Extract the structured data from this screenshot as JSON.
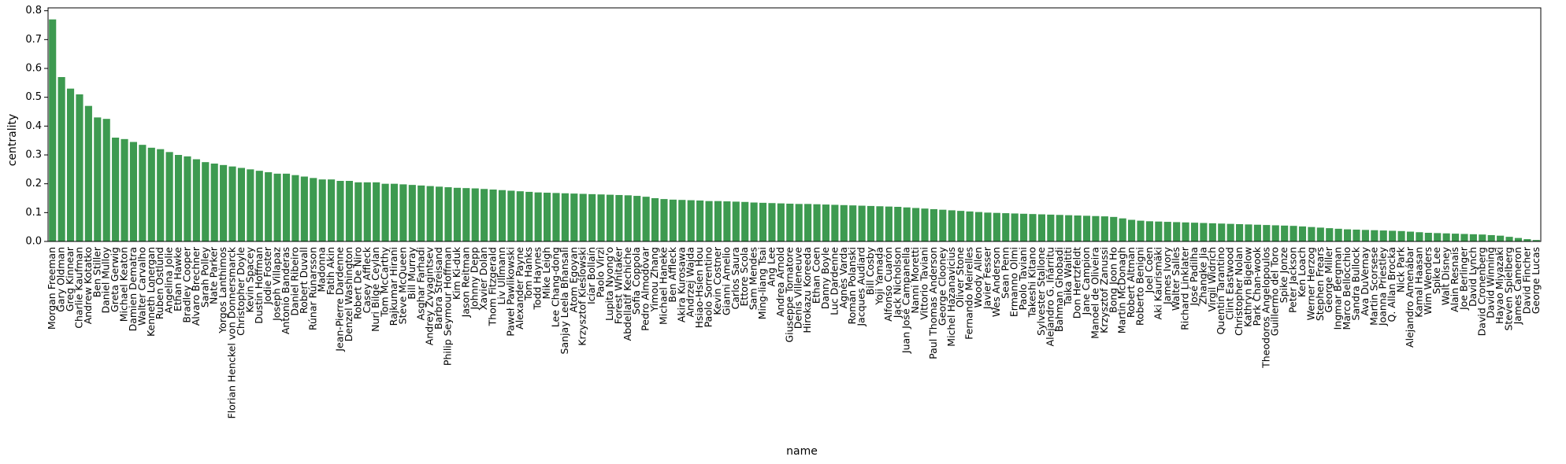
{
  "chart_data": {
    "type": "bar",
    "x_label": "name",
    "y_label": "centrality",
    "color": "#3d9a50",
    "categories": [
      "Morgan Freeman",
      "Gary Oldman",
      "Greg Kinnear",
      "Charlie Kaufman",
      "Andrew Kotatko",
      "Ben Stiller",
      "Daniel Mulloy",
      "Greta Gerwig",
      "Michael Keaton",
      "Damien Dematra",
      "Walter Carvalho",
      "Kenneth Lonergan",
      "Ruben Östlund",
      "Angelina Jolie",
      "Ethan Hawke",
      "Bradley Cooper",
      "Alvaro Brechner",
      "Sarah Polley",
      "Nate Parker",
      "Yorgos Lanthimos",
      "Florian Henckel von Donnersmarck",
      "Christopher Doyle",
      "Kevin Spacey",
      "Dustin Hoffman",
      "Jodie Foster",
      "Joseph Villapaz",
      "Antonio Banderas",
      "Daniel Ribeiro",
      "Robert Duvall",
      "Rúnar Rúnarsson",
      "Madonna",
      "Fatih Akin",
      "Jean-Pierre Dardenne",
      "Denzel Washington",
      "Robert De Niro",
      "Casey Affleck",
      "Nuri Bilge Ceylan",
      "Tom McCarthy",
      "Rajkumar Hirani",
      "Steve McQueen",
      "Bill Murray",
      "Asghar Farhadi",
      "Andrey Zvyagintsev",
      "Barbra Streisand",
      "Philip Seymour Hoffman",
      "Kim Ki-duk",
      "Jason Reitman",
      "Johnny Depp",
      "Xavier Dolan",
      "Thom Fitzgerald",
      "Liv Ullmann",
      "Paweł Pawlikowski",
      "Alexander Payne",
      "Tom Hanks",
      "Todd Haynes",
      "Mike Leigh",
      "Lee Chang-dong",
      "Sanjay Leela Bhansali",
      "Atom Egoyan",
      "Krzysztof Kieślowski",
      "Icíar Bollaín",
      "Paolo Virzì",
      "Lupita Nyong'o",
      "Forest Whitaker",
      "Abdellatif Kechiche",
      "Sofia Coppola",
      "Pedro Almodóvar",
      "Yimou Zhang",
      "Michael Haneke",
      "Ben Affleck",
      "Akira Kurosawa",
      "Andrzej Wajda",
      "Hsiao-Hsien Hou",
      "Paolo Sorrentino",
      "Kevin Costner",
      "Gianni Amelio",
      "Carlos Saura",
      "Ettore Scola",
      "Sam Mendes",
      "Ming-liang Tsai",
      "Ang Lee",
      "Andrea Arnold",
      "Giuseppe Tornatore",
      "Denis Villeneuve",
      "Hirokazu Koreeda",
      "Ethan Coen",
      "Danny Boyle",
      "Luc Dardenne",
      "Agnès Varda",
      "Roman Polanski",
      "Jacques Audiard",
      "Bill Cosby",
      "Yoji Yamada",
      "Alfonso Cuarón",
      "Jack Nicholson",
      "Juan José Campanella",
      "Nanni Moretti",
      "Vittorio Taviani",
      "Paul Thomas Anderson",
      "George Clooney",
      "Michel Hazanavicius",
      "Oliver Stone",
      "Fernando Meirelles",
      "Woody Allen",
      "Javier Fesser",
      "Wes Anderson",
      "Sean Penn",
      "Ermanno Olmi",
      "Paolo Taviani",
      "Takeshi Kitano",
      "Sylvester Stallone",
      "Alejandro G. Iñárritu",
      "Bahman Ghobadi",
      "Taika Waititi",
      "Don Hertzfeldt",
      "Jane Campion",
      "Manoel de Oliveira",
      "Krzysztof Zanussi",
      "Bong Joon Ho",
      "Martin McDonagh",
      "Robert Altman",
      "Roberto Benigni",
      "Joel Coen",
      "Aki Kaurismäki",
      "James Ivory",
      "Walter Salles",
      "Richard Linklater",
      "José Padilha",
      "Zhangke Jia",
      "Virgil Widrich",
      "Quentin Tarantino",
      "Clint Eastwood",
      "Christopher Nolan",
      "Kathryn Bigelow",
      "Park Chan-wook",
      "Theodoros Angelopoulos",
      "Guillermo del Toro",
      "Spike Jonze",
      "Peter Jackson",
      "Ken Loach",
      "Werner Herzog",
      "Stephen Frears",
      "George Miller",
      "Ingmar Bergman",
      "Marco Bellocchio",
      "Sandra Bullock",
      "Ava DuVernay",
      "Martin Scorsese",
      "Joanna Priestley",
      "Q. Allan Brocka",
      "Nick Park",
      "Alejandro Amenábar",
      "Kamal Haasan",
      "Wim Wenders",
      "Spike Lee",
      "Walt Disney",
      "Alain Resnais",
      "Joe Berlinger",
      "David Lynch",
      "David Cronenberg",
      "David Winning",
      "Hayao Miyazaki",
      "Steven Spielberg",
      "James Cameron",
      "David Fincher",
      "George Lucas"
    ],
    "values": [
      0.77,
      0.57,
      0.53,
      0.51,
      0.47,
      0.43,
      0.425,
      0.36,
      0.355,
      0.345,
      0.335,
      0.325,
      0.32,
      0.31,
      0.3,
      0.295,
      0.285,
      0.275,
      0.27,
      0.265,
      0.26,
      0.255,
      0.25,
      0.245,
      0.24,
      0.235,
      0.235,
      0.23,
      0.225,
      0.22,
      0.215,
      0.215,
      0.21,
      0.21,
      0.205,
      0.205,
      0.205,
      0.2,
      0.2,
      0.198,
      0.196,
      0.194,
      0.192,
      0.19,
      0.188,
      0.186,
      0.185,
      0.184,
      0.182,
      0.18,
      0.178,
      0.176,
      0.174,
      0.172,
      0.17,
      0.169,
      0.168,
      0.167,
      0.166,
      0.165,
      0.164,
      0.163,
      0.162,
      0.161,
      0.16,
      0.158,
      0.155,
      0.15,
      0.147,
      0.145,
      0.144,
      0.143,
      0.142,
      0.14,
      0.14,
      0.139,
      0.138,
      0.137,
      0.135,
      0.134,
      0.133,
      0.132,
      0.131,
      0.13,
      0.13,
      0.129,
      0.128,
      0.127,
      0.126,
      0.125,
      0.124,
      0.123,
      0.122,
      0.121,
      0.12,
      0.118,
      0.116,
      0.114,
      0.112,
      0.11,
      0.108,
      0.106,
      0.104,
      0.102,
      0.1,
      0.099,
      0.098,
      0.097,
      0.096,
      0.095,
      0.094,
      0.093,
      0.092,
      0.091,
      0.09,
      0.089,
      0.088,
      0.087,
      0.085,
      0.08,
      0.075,
      0.072,
      0.07,
      0.069,
      0.068,
      0.067,
      0.066,
      0.065,
      0.064,
      0.063,
      0.062,
      0.061,
      0.06,
      0.059,
      0.058,
      0.057,
      0.056,
      0.055,
      0.054,
      0.052,
      0.05,
      0.048,
      0.046,
      0.044,
      0.042,
      0.041,
      0.04,
      0.039,
      0.038,
      0.037,
      0.036,
      0.034,
      0.032,
      0.03,
      0.029,
      0.028,
      0.027,
      0.026,
      0.025,
      0.024,
      0.022,
      0.02,
      0.016,
      0.012,
      0.008,
      0.005
    ],
    "ylim": [
      0,
      0.81
    ],
    "yticks": [
      {
        "value": 0,
        "label": "0.0"
      },
      0.1,
      0.2,
      0.3,
      0.4,
      0.5,
      0.6,
      0.7,
      0.8
    ]
  }
}
